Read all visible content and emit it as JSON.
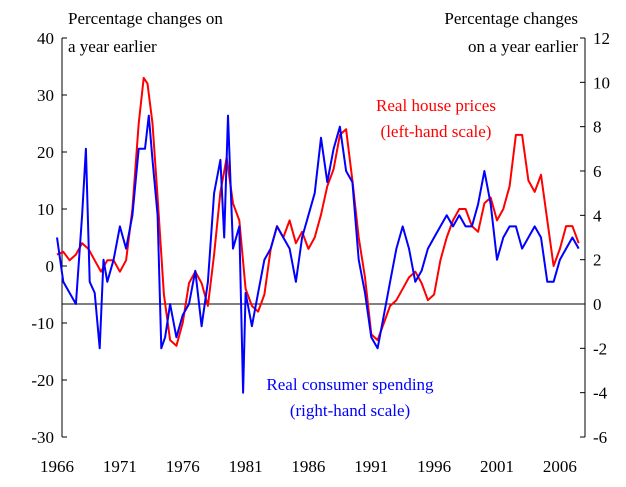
{
  "chart_data": {
    "type": "line",
    "ylabel": [
      "Percentage changes on",
      "a year earlier"
    ],
    "y2label": [
      "Percentage changes",
      "on a year earlier"
    ],
    "xlim": [
      1966,
      2008
    ],
    "xticks": [
      1966,
      1971,
      1976,
      1981,
      1986,
      1991,
      1996,
      2001,
      2006
    ],
    "ylim": [
      -30,
      40
    ],
    "yticks": [
      -30,
      -20,
      -10,
      0,
      10,
      20,
      30,
      40
    ],
    "y2lim": [
      -6,
      12
    ],
    "y2ticks": [
      -6,
      -4,
      -2,
      0,
      2,
      4,
      6,
      8,
      10,
      12
    ],
    "series": [
      {
        "name": "Real house prices",
        "note": "(left-hand scale)",
        "color": "#ff0000",
        "axis": "y",
        "x": [
          1966,
          1966.5,
          1967,
          1967.5,
          1968,
          1968.5,
          1969,
          1969.5,
          1970,
          1970.5,
          1971,
          1971.5,
          1972,
          1972.5,
          1972.9,
          1973.2,
          1973.6,
          1974,
          1974.5,
          1975,
          1975.5,
          1976,
          1976.5,
          1977,
          1977.5,
          1978,
          1978.5,
          1979,
          1979.5,
          1980,
          1980.5,
          1981,
          1981.5,
          1982,
          1982.5,
          1983,
          1983.5,
          1984,
          1984.5,
          1985,
          1985.5,
          1986,
          1986.5,
          1987,
          1987.5,
          1988,
          1988.5,
          1989,
          1989.5,
          1990,
          1990.5,
          1991,
          1991.5,
          1992,
          1992.5,
          1993,
          1993.5,
          1994,
          1994.5,
          1995,
          1995.5,
          1996,
          1996.5,
          1997,
          1997.5,
          1998,
          1998.5,
          1999,
          1999.5,
          2000,
          2000.5,
          2001,
          2001.5,
          2002,
          2002.5,
          2003,
          2003.5,
          2004,
          2004.5,
          2005,
          2005.5,
          2006,
          2006.5,
          2007,
          2007.5
        ],
        "values": [
          2,
          2.5,
          1,
          2,
          4,
          3,
          1,
          -1,
          1,
          1,
          -1,
          1,
          10,
          25,
          33,
          32,
          25,
          12,
          -5,
          -13,
          -14,
          -10,
          -3,
          -1,
          -3,
          -7,
          2,
          13,
          19,
          11,
          8,
          -4,
          -7,
          -8,
          -5,
          3,
          7,
          5,
          8,
          4,
          6,
          3,
          5,
          9,
          14,
          17,
          23,
          24,
          15,
          5,
          -2,
          -12,
          -13,
          -10,
          -7,
          -6,
          -4,
          -2,
          -1,
          -3,
          -6,
          -5,
          1,
          5,
          8,
          10,
          10,
          7,
          6,
          11,
          12,
          8,
          10,
          14,
          23,
          23,
          15,
          13,
          16,
          8,
          0,
          3,
          7,
          7,
          4
        ]
      },
      {
        "name": "Real consumer spending",
        "note": "(right-hand scale)",
        "color": "#0000ff",
        "axis": "y2",
        "x": [
          1966,
          1966.5,
          1967,
          1967.5,
          1968,
          1968.3,
          1968.6,
          1969,
          1969.4,
          1969.7,
          1970,
          1970.5,
          1971,
          1971.5,
          1972,
          1972.5,
          1973,
          1973.3,
          1973.6,
          1974,
          1974.3,
          1974.6,
          1975,
          1975.5,
          1976,
          1976.5,
          1977,
          1977.5,
          1978,
          1978.5,
          1979,
          1979.3,
          1979.6,
          1980,
          1980.5,
          1980.8,
          1981,
          1981.5,
          1982,
          1982.5,
          1983,
          1983.5,
          1984,
          1984.5,
          1985,
          1985.5,
          1986,
          1986.5,
          1987,
          1987.5,
          1988,
          1988.5,
          1989,
          1989.5,
          1990,
          1990.5,
          1991,
          1991.5,
          1992,
          1992.5,
          1993,
          1993.5,
          1994,
          1994.5,
          1995,
          1995.5,
          1996,
          1996.5,
          1997,
          1997.5,
          1998,
          1998.5,
          1999,
          1999.5,
          2000,
          2000.5,
          2001,
          2001.5,
          2002,
          2002.5,
          2003,
          2003.5,
          2004,
          2004.5,
          2005,
          2005.5,
          2006,
          2006.5,
          2007,
          2007.5
        ],
        "values": [
          3,
          1,
          0.5,
          0,
          4,
          7,
          1,
          0.5,
          -2,
          2,
          1,
          2,
          3.5,
          2.5,
          4,
          7,
          7,
          8.5,
          6.5,
          4,
          -2,
          -1.5,
          0,
          -1.5,
          -0.5,
          0,
          1.5,
          -1,
          1,
          5,
          6.5,
          3,
          8.5,
          2.5,
          3.5,
          -4,
          0.5,
          -1,
          0.5,
          2,
          2.5,
          3.5,
          3,
          2.5,
          1,
          3,
          4,
          5,
          7.5,
          5.5,
          7,
          8,
          6,
          5.5,
          2,
          0.5,
          -1.5,
          -2,
          -0.5,
          1,
          2.5,
          3.5,
          2.5,
          1,
          1.5,
          2.5,
          3,
          3.5,
          4,
          3.5,
          4,
          3.5,
          3.5,
          4.5,
          6,
          4.5,
          2,
          3,
          3.5,
          3.5,
          2.5,
          3,
          3.5,
          3,
          1,
          1,
          2,
          2.5,
          3,
          2.5
        ]
      }
    ]
  }
}
